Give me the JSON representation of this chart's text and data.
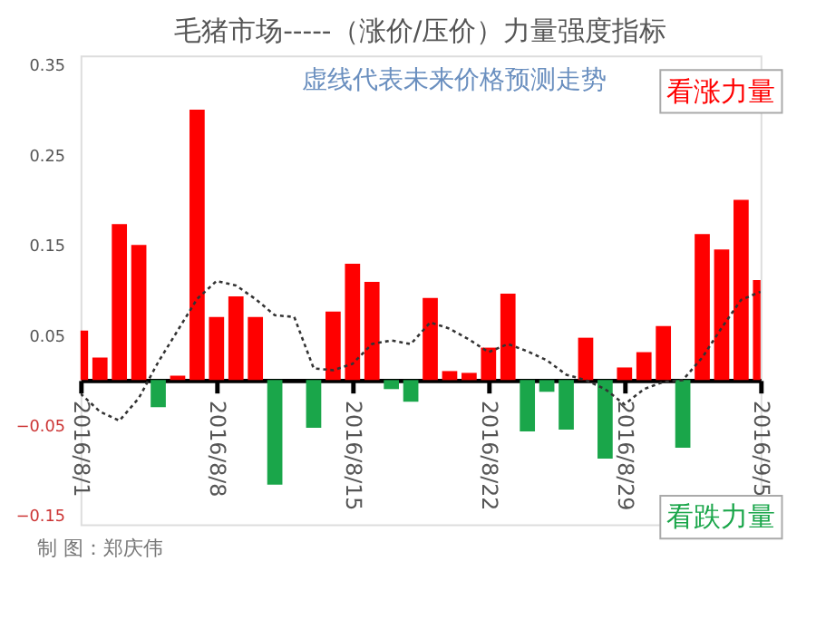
{
  "chart_data": {
    "type": "bar",
    "title": "毛猪市场-----（涨价/压价）力量强度指标",
    "subtitle": "虚线代表未来价格预测走势",
    "x": [
      "2016-08-01",
      "2016-08-02",
      "2016-08-03",
      "2016-08-04",
      "2016-08-05",
      "2016-08-06",
      "2016-08-07",
      "2016-08-08",
      "2016-08-09",
      "2016-08-10",
      "2016-08-11",
      "2016-08-12",
      "2016-08-13",
      "2016-08-14",
      "2016-08-15",
      "2016-08-16",
      "2016-08-17",
      "2016-08-18",
      "2016-08-19",
      "2016-08-20",
      "2016-08-21",
      "2016-08-22",
      "2016-08-23",
      "2016-08-24",
      "2016-08-25",
      "2016-08-26",
      "2016-08-27",
      "2016-08-28",
      "2016-08-29",
      "2016-08-30",
      "2016-08-31",
      "2016-09-01",
      "2016-09-02",
      "2016-09-03",
      "2016-09-04",
      "2016-09-05"
    ],
    "series": [
      {
        "name": "看涨力量",
        "color": "#ff0000",
        "values": [
          0.055,
          0.025,
          0.173,
          0.15,
          null,
          0.005,
          0.3,
          0.07,
          0.093,
          0.07,
          null,
          null,
          null,
          0.076,
          0.129,
          0.109,
          null,
          null,
          0.091,
          0.01,
          0.008,
          0.036,
          0.096,
          null,
          null,
          null,
          0.047,
          null,
          0.014,
          0.031,
          0.06,
          null,
          0.162,
          0.145,
          0.2,
          0.111
        ]
      },
      {
        "name": "看跌力量",
        "color": "#1aa64a",
        "values": [
          null,
          null,
          null,
          null,
          -0.03,
          null,
          null,
          null,
          null,
          null,
          -0.116,
          null,
          -0.053,
          null,
          null,
          null,
          -0.01,
          -0.024,
          null,
          null,
          null,
          null,
          null,
          -0.057,
          -0.013,
          -0.055,
          null,
          -0.087,
          null,
          null,
          null,
          -0.075,
          null,
          null,
          null,
          null
        ]
      },
      {
        "type": "line",
        "color": "#333333",
        "line_style": "dotted",
        "values": [
          -0.015,
          -0.035,
          -0.045,
          -0.02,
          0.02,
          0.055,
          0.09,
          0.11,
          0.105,
          0.09,
          0.072,
          0.07,
          0.013,
          0.011,
          0.018,
          0.04,
          0.044,
          0.04,
          0.064,
          0.057,
          0.045,
          0.031,
          0.04,
          0.032,
          0.022,
          0.006,
          0,
          -0.01,
          -0.027,
          -0.01,
          -0.002,
          0,
          0.025,
          0.058,
          0.089,
          0.098
        ]
      }
    ],
    "xlim": [
      "2016-08-01",
      "2016-09-05"
    ],
    "xticks": [
      {
        "value": "2016-08-01",
        "label": "2016/8/1"
      },
      {
        "value": "2016-08-08",
        "label": "2016/8/8"
      },
      {
        "value": "2016-08-15",
        "label": "2016/8/15"
      },
      {
        "value": "2016-08-22",
        "label": "2016/8/22"
      },
      {
        "value": "2016-08-29",
        "label": "2016/8/29"
      },
      {
        "value": "2016-09-05",
        "label": "2016/9/5"
      }
    ],
    "ylim": [
      -0.16,
      0.36
    ],
    "yticks": [
      -0.15,
      -0.05,
      0.05,
      0.15,
      0.25,
      0.35
    ],
    "legend": "right",
    "annotations": [
      "制 图：郑庆伟"
    ]
  }
}
